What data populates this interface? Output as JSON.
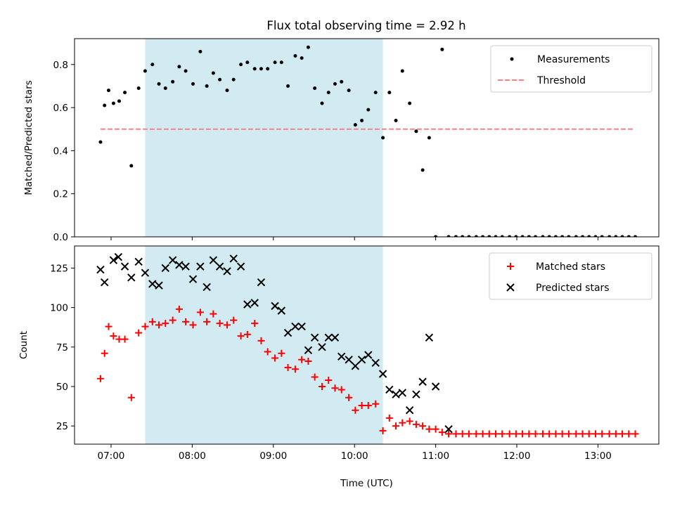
{
  "figure": {
    "title": "Flux total observing time = 2.92 h"
  },
  "chart_data": [
    {
      "type": "scatter",
      "title": "Flux total observing time = 2.92 h",
      "xlabel": "",
      "ylabel": "Matched/Predicted stars",
      "xlim": [
        6.55,
        13.75
      ],
      "ylim": [
        0.0,
        0.92
      ],
      "yticks": [
        0.0,
        0.2,
        0.4,
        0.6,
        0.8
      ],
      "ytick_labels": [
        "0.0",
        "0.2",
        "0.4",
        "0.6",
        "0.8"
      ],
      "xticks": [
        7,
        8,
        9,
        10,
        11,
        12,
        13
      ],
      "shaded_span": [
        7.42,
        10.35
      ],
      "shade_color": "#add8e6",
      "threshold": {
        "name": "Threshold",
        "value": 0.5,
        "x_range": [
          6.87,
          13.45
        ],
        "color": "#ff8080"
      },
      "series": [
        {
          "name": "Measurements",
          "color": "#000000",
          "x": [
            6.87,
            6.92,
            6.97,
            7.03,
            7.1,
            7.17,
            7.25,
            7.34,
            7.42,
            7.51,
            7.59,
            7.67,
            7.76,
            7.84,
            7.92,
            8.01,
            8.1,
            8.18,
            8.26,
            8.34,
            8.43,
            8.51,
            8.6,
            8.68,
            8.77,
            8.85,
            8.93,
            9.02,
            9.1,
            9.18,
            9.27,
            9.35,
            9.43,
            9.51,
            9.6,
            9.68,
            9.76,
            9.84,
            9.93,
            10.01,
            10.09,
            10.17,
            10.26,
            10.35,
            10.43,
            10.51,
            10.59,
            10.68,
            10.76,
            10.84,
            10.92,
            11.0,
            11.08,
            11.16,
            11.25,
            11.33,
            11.41,
            11.5,
            11.58,
            11.66,
            11.74,
            11.82,
            11.91,
            11.99,
            12.07,
            12.15,
            12.23,
            12.32,
            12.4,
            12.48,
            12.56,
            12.64,
            12.73,
            12.81,
            12.89,
            12.97,
            13.05,
            13.14,
            13.22,
            13.3,
            13.38,
            13.46
          ],
          "y": [
            0.44,
            0.61,
            0.68,
            0.62,
            0.63,
            0.67,
            0.33,
            0.69,
            0.77,
            0.8,
            0.71,
            0.69,
            0.72,
            0.79,
            0.77,
            0.71,
            0.86,
            0.7,
            0.76,
            0.73,
            0.68,
            0.73,
            0.8,
            0.81,
            0.78,
            0.78,
            0.78,
            0.81,
            0.81,
            0.7,
            0.84,
            0.83,
            0.88,
            0.69,
            0.62,
            0.67,
            0.71,
            0.72,
            0.68,
            0.52,
            0.54,
            0.59,
            0.67,
            0.46,
            0.67,
            0.54,
            0.77,
            0.62,
            0.49,
            0.31,
            0.46,
            0.0,
            0.87,
            0.0,
            0.0,
            0.0,
            0.0,
            0.0,
            0.0,
            0.0,
            0.0,
            0.0,
            0.0,
            0.0,
            0.0,
            0.0,
            0.0,
            0.0,
            0.0,
            0.0,
            0.0,
            0.0,
            0.0,
            0.0,
            0.0,
            0.0,
            0.0,
            0.0,
            0.0,
            0.0,
            0.0,
            0.0
          ]
        }
      ],
      "legend": {
        "position": "top-right",
        "entries": [
          "Measurements",
          "Threshold"
        ]
      }
    },
    {
      "type": "scatter",
      "title": "",
      "xlabel": "Time (UTC)",
      "ylabel": "Count",
      "xlim": [
        6.55,
        13.75
      ],
      "ylim": [
        13.5,
        139
      ],
      "yticks": [
        25,
        50,
        75,
        100,
        125
      ],
      "ytick_labels": [
        "25",
        "50",
        "75",
        "100",
        "125"
      ],
      "xticks": [
        7,
        8,
        9,
        10,
        11,
        12,
        13
      ],
      "xtick_labels": [
        "07:00",
        "08:00",
        "09:00",
        "10:00",
        "11:00",
        "12:00",
        "13:00"
      ],
      "shaded_span": [
        7.42,
        10.35
      ],
      "shade_color": "#add8e6",
      "series": [
        {
          "name": "Matched stars",
          "marker": "plus",
          "color": "#ff0000",
          "x": [
            6.87,
            6.92,
            6.97,
            7.03,
            7.1,
            7.17,
            7.25,
            7.34,
            7.42,
            7.51,
            7.59,
            7.67,
            7.76,
            7.84,
            7.92,
            8.01,
            8.1,
            8.18,
            8.26,
            8.34,
            8.43,
            8.51,
            8.6,
            8.68,
            8.77,
            8.85,
            8.93,
            9.02,
            9.1,
            9.18,
            9.27,
            9.35,
            9.43,
            9.51,
            9.6,
            9.68,
            9.76,
            9.84,
            9.93,
            10.01,
            10.09,
            10.17,
            10.26,
            10.35,
            10.43,
            10.51,
            10.59,
            10.68,
            10.76,
            10.84,
            10.92,
            11.0,
            11.08,
            11.16,
            11.25,
            11.33,
            11.41,
            11.5,
            11.58,
            11.66,
            11.74,
            11.82,
            11.91,
            11.99,
            12.07,
            12.15,
            12.23,
            12.32,
            12.4,
            12.48,
            12.56,
            12.64,
            12.73,
            12.81,
            12.89,
            12.97,
            13.05,
            13.14,
            13.22,
            13.3,
            13.38,
            13.46
          ],
          "y": [
            55,
            71,
            88,
            82,
            80,
            80,
            43,
            84,
            88,
            91,
            89,
            90,
            92,
            99,
            91,
            89,
            97,
            91,
            96,
            90,
            89,
            92,
            82,
            83,
            90,
            79,
            72,
            68,
            71,
            62,
            61,
            67,
            66,
            56,
            50,
            54,
            49,
            48,
            43,
            35,
            38,
            38,
            39,
            22,
            30,
            25,
            27,
            28,
            26,
            25,
            23,
            23,
            21,
            20,
            20,
            20,
            20,
            20,
            20,
            20,
            20,
            20,
            20,
            20,
            20,
            20,
            20,
            20,
            20,
            20,
            20,
            20,
            20,
            20,
            20,
            20,
            20,
            20,
            20,
            20,
            20,
            20
          ]
        },
        {
          "name": "Predicted stars",
          "marker": "x",
          "color": "#000000",
          "x": [
            6.87,
            6.92,
            7.03,
            7.09,
            7.17,
            7.25,
            7.34,
            7.42,
            7.51,
            7.59,
            7.67,
            7.76,
            7.84,
            7.92,
            8.01,
            8.1,
            8.18,
            8.26,
            8.34,
            8.43,
            8.51,
            8.6,
            8.68,
            8.77,
            8.85,
            9.02,
            9.1,
            9.18,
            9.27,
            9.35,
            9.43,
            9.51,
            9.6,
            9.68,
            9.76,
            9.84,
            9.93,
            10.01,
            10.09,
            10.17,
            10.26,
            10.35,
            10.43,
            10.51,
            10.59,
            10.68,
            10.76,
            10.84,
            10.92,
            11.0,
            11.16
          ],
          "y": [
            124,
            116,
            130,
            132,
            126,
            119,
            129,
            122,
            115,
            114,
            125,
            130,
            127,
            126,
            118,
            126,
            113,
            130,
            126,
            123,
            131,
            126,
            102,
            103,
            116,
            101,
            98,
            84,
            88,
            88,
            73,
            81,
            75,
            81,
            81,
            69,
            67,
            63,
            67,
            70,
            65,
            58,
            48,
            45,
            46,
            35,
            45,
            53,
            81,
            50,
            23
          ]
        }
      ],
      "legend": {
        "position": "top-right",
        "entries": [
          "Matched stars",
          "Predicted stars"
        ]
      }
    }
  ]
}
